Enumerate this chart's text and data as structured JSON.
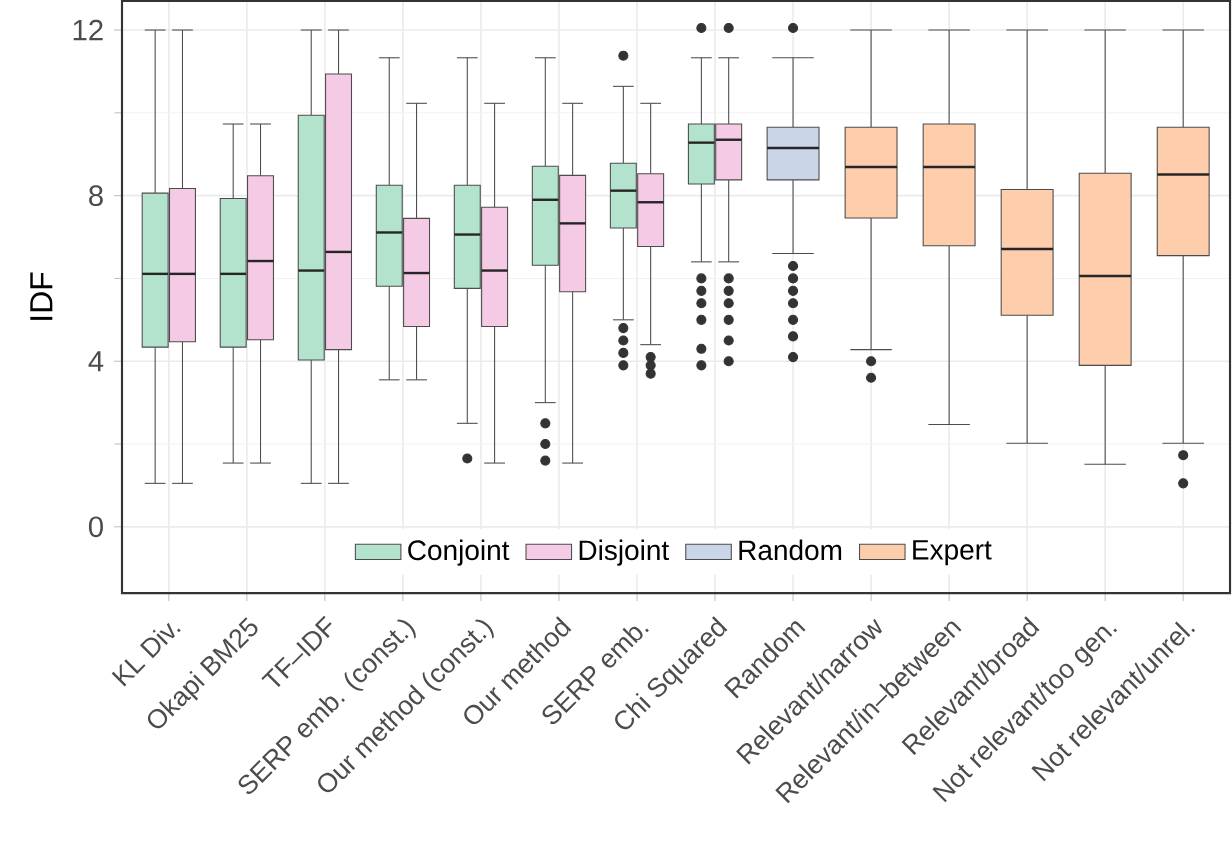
{
  "chart_data": {
    "type": "box",
    "ylabel": "IDF",
    "ylim": [
      -1.6,
      12.7
    ],
    "yticks": [
      0,
      4,
      8,
      12
    ],
    "grid": true,
    "legend": "bottom",
    "categories": [
      "KL Div.",
      "Okapi BM25",
      "TF–IDF",
      "SERP emb. (const.)",
      "Our method (const.)",
      "Our method",
      "SERP emb.",
      "Chi Squared",
      "Random",
      "Relevant/narrow",
      "Relevant/in–between",
      "Relevant/broad",
      "Not relevant/too gen.",
      "Not relevant/unrel."
    ],
    "series": [
      {
        "name": "Conjoint",
        "color": "#b3e2cd",
        "boxes": [
          {
            "low": 1.05,
            "q1": 4.34,
            "median": 6.11,
            "q3": 8.06,
            "high": 12.0
          },
          {
            "low": 1.54,
            "q1": 4.34,
            "median": 6.11,
            "q3": 7.93,
            "high": 9.73
          },
          {
            "low": 1.05,
            "q1": 4.03,
            "median": 6.19,
            "q3": 9.94,
            "high": 12.0
          },
          {
            "low": 3.55,
            "q1": 5.81,
            "median": 7.11,
            "q3": 8.25,
            "high": 11.33
          },
          {
            "low": 2.5,
            "q1": 5.76,
            "median": 7.06,
            "q3": 8.25,
            "high": 11.33,
            "outliers": [
              1.65
            ]
          },
          {
            "low": 3.0,
            "q1": 6.32,
            "median": 7.9,
            "q3": 8.71,
            "high": 11.33,
            "outliers": [
              2.5,
              2.0,
              1.6
            ]
          },
          {
            "low": 5.0,
            "q1": 7.22,
            "median": 8.12,
            "q3": 8.78,
            "high": 10.64,
            "outliers": [
              11.38,
              4.8,
              4.5,
              4.2,
              3.9
            ]
          },
          {
            "low": 6.4,
            "q1": 8.28,
            "median": 9.28,
            "q3": 9.73,
            "high": 11.33,
            "outliers": [
              12.05,
              6.0,
              5.7,
              5.4,
              5.0,
              4.3,
              3.9
            ]
          },
          null,
          null,
          null,
          null,
          null,
          null
        ]
      },
      {
        "name": "Disjoint",
        "color": "#f4cae4",
        "boxes": [
          {
            "low": 1.05,
            "q1": 4.47,
            "median": 6.11,
            "q3": 8.17,
            "high": 12.0
          },
          {
            "low": 1.54,
            "q1": 4.52,
            "median": 6.42,
            "q3": 8.48,
            "high": 9.73
          },
          {
            "low": 1.05,
            "q1": 4.28,
            "median": 6.64,
            "q3": 10.94,
            "high": 12.0
          },
          {
            "low": 3.55,
            "q1": 4.84,
            "median": 6.13,
            "q3": 7.45,
            "high": 10.23
          },
          {
            "low": 1.54,
            "q1": 4.84,
            "median": 6.19,
            "q3": 7.72,
            "high": 10.23
          },
          {
            "low": 1.54,
            "q1": 5.68,
            "median": 7.33,
            "q3": 8.49,
            "high": 10.23
          },
          {
            "low": 4.4,
            "q1": 6.77,
            "median": 7.84,
            "q3": 8.53,
            "high": 10.23,
            "outliers": [
              4.1,
              3.9,
              3.7
            ]
          },
          {
            "low": 6.4,
            "q1": 8.38,
            "median": 9.35,
            "q3": 9.73,
            "high": 11.33,
            "outliers": [
              12.05,
              6.0,
              5.7,
              5.4,
              5.0,
              4.5,
              4.0
            ]
          },
          null,
          null,
          null,
          null,
          null,
          null
        ]
      },
      {
        "name": "Random",
        "color": "#cbd5e8",
        "boxes": [
          null,
          null,
          null,
          null,
          null,
          null,
          null,
          null,
          {
            "low": 6.6,
            "q1": 8.38,
            "median": 9.15,
            "q3": 9.65,
            "high": 11.33,
            "outliers": [
              12.05,
              6.3,
              6.0,
              5.7,
              5.4,
              5.0,
              4.6,
              4.1
            ]
          },
          null,
          null,
          null,
          null,
          null
        ]
      },
      {
        "name": "Expert",
        "color": "#fdcdac",
        "boxes": [
          null,
          null,
          null,
          null,
          null,
          null,
          null,
          null,
          null,
          {
            "low": 4.28,
            "q1": 7.46,
            "median": 8.69,
            "q3": 9.65,
            "high": 12.0,
            "outliers": [
              4.0,
              3.6
            ]
          },
          {
            "low": 2.47,
            "q1": 6.79,
            "median": 8.69,
            "q3": 9.73,
            "high": 12.0
          },
          {
            "low": 2.02,
            "q1": 5.11,
            "median": 6.71,
            "q3": 8.15,
            "high": 12.0
          },
          {
            "low": 1.51,
            "q1": 3.9,
            "median": 6.06,
            "q3": 8.54,
            "high": 12.0
          },
          {
            "low": 2.02,
            "q1": 6.55,
            "median": 8.51,
            "q3": 9.65,
            "high": 12.0,
            "outliers": [
              1.73,
              1.05
            ]
          }
        ]
      }
    ]
  }
}
